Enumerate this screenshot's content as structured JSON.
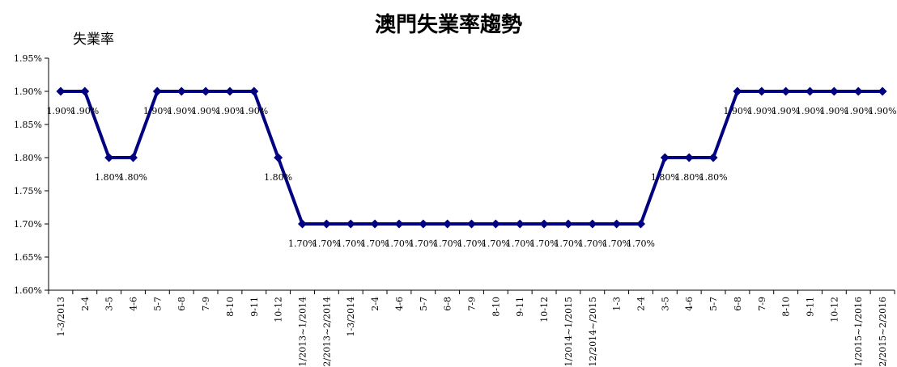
{
  "chart_data": {
    "type": "line",
    "title": "澳門失業率趨勢",
    "ylabel": "失業率",
    "xlabel": "",
    "ylim": [
      1.6,
      1.95
    ],
    "yticks": [
      "1.60%",
      "1.65%",
      "1.70%",
      "1.75%",
      "1.80%",
      "1.85%",
      "1.90%",
      "1.95%"
    ],
    "grid": false,
    "legend": "none",
    "line_color": "#000080",
    "categories": [
      "1-3/2013",
      "2-4",
      "3-5",
      "4-6",
      "5-7",
      "6-8",
      "7-9",
      "8-10",
      "9-11",
      "10-12",
      "11/2013~1/2014",
      "12/2013~2/2014",
      "1-3/2014",
      "2-4",
      "4-6",
      "5-7",
      "6-8",
      "7-9",
      "8-10",
      "9-11",
      "10-12",
      "11/2014~1/2015",
      "12/2014~/2015",
      "1-3",
      "2-4",
      "3-5",
      "4-6",
      "5-7",
      "6-8",
      "7-9",
      "8-10",
      "9-11",
      "10-12",
      "11/2015~1/2016",
      "12/2015~2/2016"
    ],
    "values": [
      1.9,
      1.9,
      1.8,
      1.8,
      1.9,
      1.9,
      1.9,
      1.9,
      1.9,
      1.8,
      1.7,
      1.7,
      1.7,
      1.7,
      1.7,
      1.7,
      1.7,
      1.7,
      1.7,
      1.7,
      1.7,
      1.7,
      1.7,
      1.7,
      1.7,
      1.8,
      1.8,
      1.8,
      1.9,
      1.9,
      1.9,
      1.9,
      1.9,
      1.9,
      1.9
    ],
    "data_labels": [
      "1.90%",
      "1.90%",
      "1.80%",
      "1.80%",
      "1.90%",
      "1.90%",
      "1.90%",
      "1.90%",
      "1.90%",
      "1.80%",
      "1.70%",
      "1.70%",
      "1.70%",
      "1.70%",
      "1.70%",
      "1.70%",
      "1.70%",
      "1.70%",
      "1.70%",
      "1.70%",
      "1.70%",
      "1.70%",
      "1.70%",
      "1.70%",
      "1.70%",
      "1.80%",
      "1.80%",
      "1.80%",
      "1.90%",
      "1.90%",
      "1.90%",
      "1.90%",
      "1.90%",
      "1.90%",
      "1.90%"
    ]
  }
}
